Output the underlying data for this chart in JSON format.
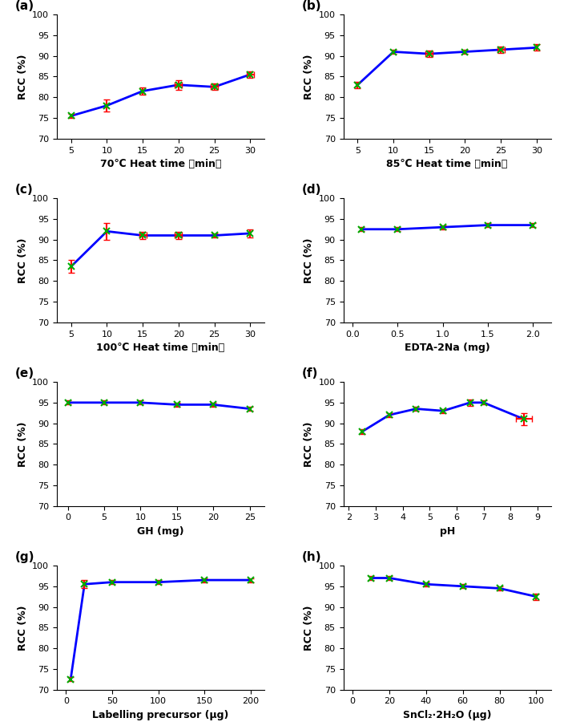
{
  "panels": [
    {
      "label": "(a)",
      "xlabel": "70℃ Heat time （min）",
      "ylabel": "RCC (%)",
      "x": [
        5,
        10,
        15,
        20,
        25,
        30
      ],
      "y": [
        75.5,
        78.0,
        81.5,
        83.0,
        82.5,
        85.5
      ],
      "yerr": [
        0.5,
        1.5,
        0.8,
        1.2,
        0.8,
        0.8
      ],
      "xerr": [
        0.0,
        0.0,
        0.0,
        0.5,
        0.5,
        0.5
      ],
      "ylim": [
        70,
        100
      ],
      "yticks": [
        70,
        75,
        80,
        85,
        90,
        95,
        100
      ],
      "xticks": [
        5,
        10,
        15,
        20,
        25,
        30
      ],
      "xlim": [
        3,
        32
      ]
    },
    {
      "label": "(b)",
      "xlabel": "85℃ Heat time （min）",
      "ylabel": "RCC (%)",
      "x": [
        5,
        10,
        15,
        20,
        25,
        30
      ],
      "y": [
        83.0,
        91.0,
        90.5,
        91.0,
        91.5,
        92.0
      ],
      "yerr": [
        0.8,
        0.5,
        0.8,
        0.5,
        0.8,
        0.8
      ],
      "xerr": [
        0.0,
        0.0,
        0.5,
        0.0,
        0.5,
        0.0
      ],
      "ylim": [
        70,
        100
      ],
      "yticks": [
        70,
        75,
        80,
        85,
        90,
        95,
        100
      ],
      "xticks": [
        5,
        10,
        15,
        20,
        25,
        30
      ],
      "xlim": [
        3,
        32
      ]
    },
    {
      "label": "(c)",
      "xlabel": "100℃ Heat time （min）",
      "ylabel": "RCC (%)",
      "x": [
        5,
        10,
        15,
        20,
        25,
        30
      ],
      "y": [
        83.5,
        92.0,
        91.0,
        91.0,
        91.0,
        91.5
      ],
      "yerr": [
        1.5,
        2.0,
        0.8,
        0.8,
        0.5,
        1.0
      ],
      "xerr": [
        0.0,
        0.0,
        0.5,
        0.5,
        0.0,
        0.0
      ],
      "ylim": [
        70,
        100
      ],
      "yticks": [
        70,
        75,
        80,
        85,
        90,
        95,
        100
      ],
      "xticks": [
        5,
        10,
        15,
        20,
        25,
        30
      ],
      "xlim": [
        3,
        32
      ]
    },
    {
      "label": "(d)",
      "xlabel": "EDTA-2Na (mg)",
      "ylabel": "RCC (%)",
      "x": [
        0.1,
        0.5,
        1.0,
        1.5,
        2.0
      ],
      "y": [
        92.5,
        92.5,
        93.0,
        93.5,
        93.5
      ],
      "yerr": [
        0.5,
        0.5,
        0.5,
        0.5,
        0.5
      ],
      "xerr": [
        0.0,
        0.0,
        0.0,
        0.0,
        0.0
      ],
      "ylim": [
        70,
        100
      ],
      "yticks": [
        70,
        75,
        80,
        85,
        90,
        95,
        100
      ],
      "xticks": [
        0.0,
        0.5,
        1.0,
        1.5,
        2.0
      ],
      "xlim": [
        -0.1,
        2.2
      ]
    },
    {
      "label": "(e)",
      "xlabel": "GH (mg)",
      "ylabel": "RCC (%)",
      "x": [
        0,
        5,
        10,
        15,
        20,
        25
      ],
      "y": [
        95.0,
        95.0,
        95.0,
        94.5,
        94.5,
        93.5
      ],
      "yerr": [
        0.5,
        0.5,
        0.5,
        0.5,
        0.5,
        0.5
      ],
      "xerr": [
        0.0,
        0.0,
        0.0,
        0.0,
        0.0,
        0.0
      ],
      "ylim": [
        70,
        100
      ],
      "yticks": [
        70,
        75,
        80,
        85,
        90,
        95,
        100
      ],
      "xticks": [
        0,
        5,
        10,
        15,
        20,
        25
      ],
      "xlim": [
        -1.5,
        27
      ]
    },
    {
      "label": "(f)",
      "xlabel": "pH",
      "ylabel": "RCC (%)",
      "x": [
        2.5,
        3.5,
        4.5,
        5.5,
        6.5,
        7.0,
        8.5
      ],
      "y": [
        88.0,
        92.0,
        93.5,
        93.0,
        95.0,
        95.0,
        91.0
      ],
      "yerr": [
        0.5,
        0.5,
        0.5,
        0.5,
        0.8,
        0.5,
        1.5
      ],
      "xerr": [
        0.0,
        0.0,
        0.0,
        0.0,
        0.0,
        0.0,
        0.3
      ],
      "ylim": [
        70,
        100
      ],
      "yticks": [
        70,
        75,
        80,
        85,
        90,
        95,
        100
      ],
      "xticks": [
        2,
        3,
        4,
        5,
        6,
        7,
        8,
        9
      ],
      "xlim": [
        1.8,
        9.5
      ]
    },
    {
      "label": "(g)",
      "xlabel": "Labelling precursor (μg)",
      "ylabel": "RCC (%)",
      "x": [
        5,
        20,
        50,
        100,
        150,
        200
      ],
      "y": [
        72.5,
        95.5,
        96.0,
        96.0,
        96.5,
        96.5
      ],
      "yerr": [
        0.5,
        1.0,
        0.5,
        0.5,
        0.5,
        0.5
      ],
      "xerr": [
        0.0,
        0.0,
        0.0,
        0.0,
        0.0,
        0.0
      ],
      "ylim": [
        70,
        100
      ],
      "yticks": [
        70,
        75,
        80,
        85,
        90,
        95,
        100
      ],
      "xticks": [
        0,
        50,
        100,
        150,
        200
      ],
      "xlim": [
        -10,
        215
      ]
    },
    {
      "label": "(h)",
      "xlabel": "SnCl₂·2H₂O (μg)",
      "ylabel": "RCC (%)",
      "x": [
        10,
        20,
        40,
        60,
        80,
        100
      ],
      "y": [
        97.0,
        97.0,
        95.5,
        95.0,
        94.5,
        92.5
      ],
      "yerr": [
        0.5,
        0.5,
        0.5,
        0.5,
        0.5,
        0.8
      ],
      "xerr": [
        0.0,
        0.0,
        0.0,
        0.0,
        0.0,
        0.0
      ],
      "ylim": [
        70,
        100
      ],
      "yticks": [
        70,
        75,
        80,
        85,
        90,
        95,
        100
      ],
      "xticks": [
        0,
        20,
        40,
        60,
        80,
        100
      ],
      "xlim": [
        -5,
        108
      ]
    }
  ],
  "line_color": "#0000ff",
  "marker_symbol_color": "#00aa00",
  "line_width": 2.0,
  "marker_size": 6,
  "capsize": 3,
  "elinewidth": 1.5,
  "ecolor": "#ff0000"
}
